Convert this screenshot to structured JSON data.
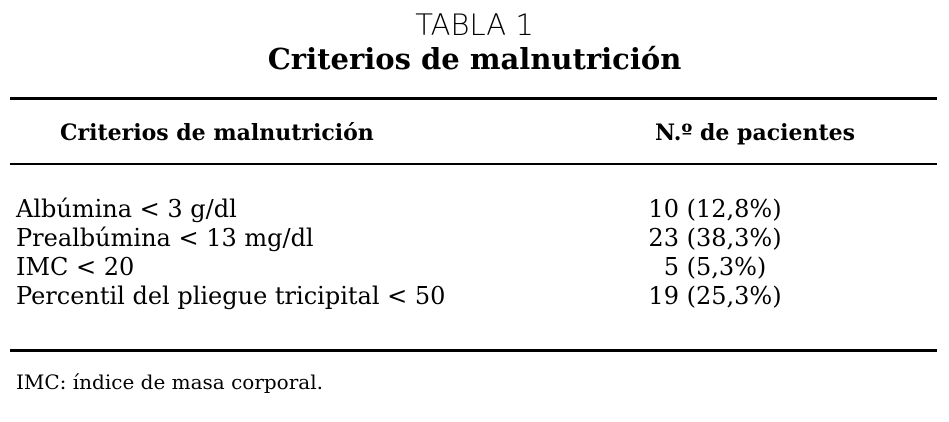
{
  "title": "TABLA 1",
  "subtitle": "Criterios de malnutrición",
  "headers": [
    "Criterios de malnutrición",
    "N.º de pacientes"
  ],
  "rows": [
    {
      "criterion": "Albúmina < 3 g/dl",
      "value": "10 (12,8%)"
    },
    {
      "criterion": "Prealbúmina < 13 mg/dl",
      "value": "23 (38,3%)"
    },
    {
      "criterion": "IMC < 20",
      "value": "5 (5,3%)"
    },
    {
      "criterion": "Percentil del pliegue tricipital < 50",
      "value": "19 (25,3%)"
    }
  ],
  "footnote": "IMC: índice de masa corporal."
}
